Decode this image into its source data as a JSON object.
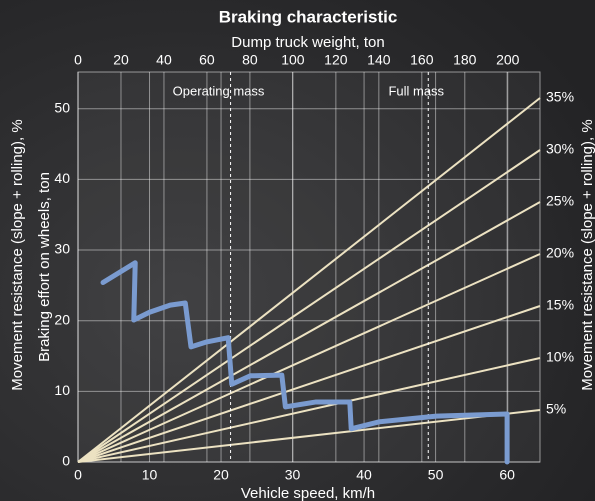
{
  "chart_data": {
    "type": "line",
    "title": "Braking characteristic",
    "x2_label": "Dump truck weight, ton",
    "x_label": "Vehicle speed, km/h",
    "y_label": "Braking effort on wheels, ton",
    "y2_label": "Movement resistance (slope + rolling), %",
    "xlim": [
      0,
      64.6
    ],
    "xticks": [
      0,
      10,
      20,
      30,
      40,
      50,
      60
    ],
    "x2lim": [
      0,
      215
    ],
    "x2ticks": [
      0,
      20,
      40,
      60,
      80,
      100,
      120,
      140,
      160,
      180,
      200
    ],
    "ylim": [
      0,
      55.2
    ],
    "yticks": [
      0,
      10,
      20,
      30,
      40,
      50
    ],
    "y2lim": [
      0,
      37.5
    ],
    "y2ticks": [
      {
        "value": 5,
        "label": "5%"
      },
      {
        "value": 10,
        "label": "10%"
      },
      {
        "value": 15,
        "label": "15%"
      },
      {
        "value": 20,
        "label": "20%"
      },
      {
        "value": 25,
        "label": "25%"
      },
      {
        "value": 30,
        "label": "30%"
      },
      {
        "value": 35,
        "label": "35%"
      }
    ],
    "y2_grid": "radial",
    "grid": true,
    "annotations": [
      {
        "text": "Operating mass",
        "x2": 71
      },
      {
        "text": "Full mass",
        "x2": 163
      }
    ],
    "series": [
      {
        "color": "#7a9bd0",
        "x": [
          3.5,
          8.0,
          7.8,
          10,
          12.9,
          15.0,
          15.8,
          18,
          21.0,
          21.5,
          24.1,
          28.5,
          29.0,
          33.3,
          38.0,
          38.2,
          42.2,
          50.1,
          60,
          60
        ],
        "values": [
          25.4,
          28.2,
          20.1,
          21.2,
          22.2,
          22.5,
          16.3,
          17.0,
          17.6,
          11.0,
          12.2,
          12.3,
          7.8,
          8.5,
          8.5,
          4.7,
          5.7,
          6.5,
          6.8,
          0
        ]
      }
    ]
  }
}
